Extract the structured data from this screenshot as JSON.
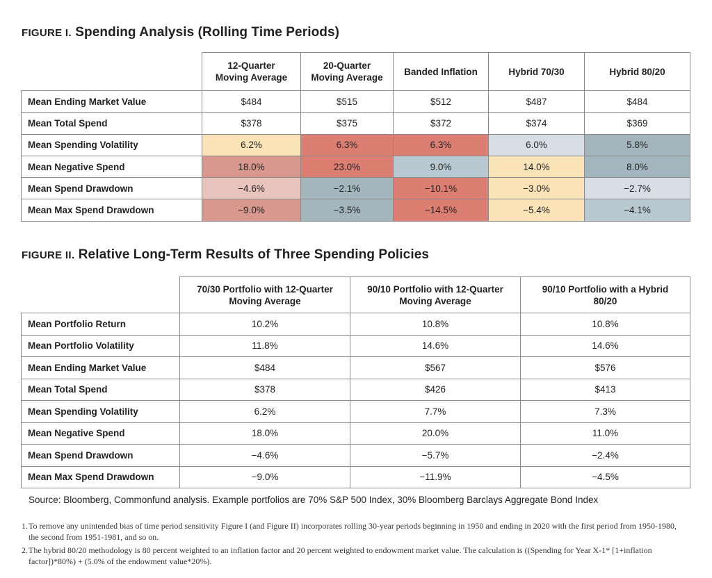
{
  "figure1": {
    "label": "FIGURE I.",
    "title": "Spending Analysis (Rolling Time Periods)",
    "columns": [
      "12-Quarter\nMoving Average",
      "20-Quarter\nMoving Average",
      "Banded Inflation",
      "Hybrid 70/30",
      "Hybrid 80/20"
    ],
    "rows": [
      {
        "label": "Mean Ending Market Value",
        "values": [
          "$484",
          "$515",
          "$512",
          "$487",
          "$484"
        ],
        "colors": [
          "",
          "",
          "",
          "",
          ""
        ]
      },
      {
        "label": "Mean Total Spend",
        "values": [
          "$378",
          "$375",
          "$372",
          "$374",
          "$369"
        ],
        "colors": [
          "",
          "",
          "",
          "",
          ""
        ]
      },
      {
        "label": "Mean Spending Volatility",
        "values": [
          "6.2%",
          "6.3%",
          "6.3%",
          "6.0%",
          "5.8%"
        ],
        "colors": [
          "#fbe3b8",
          "#dd7e73",
          "#dd7e73",
          "#d8dee5",
          "#a3b6be"
        ]
      },
      {
        "label": "Mean Negative Spend",
        "values": [
          "18.0%",
          "23.0%",
          "9.0%",
          "14.0%",
          "8.0%"
        ],
        "colors": [
          "#d9988e",
          "#dd7e73",
          "#b8c9d2",
          "#fbe3b8",
          "#a3b6be"
        ]
      },
      {
        "label": "Mean Spend Drawdown",
        "values": [
          "−4.6%",
          "−2.1%",
          "−10.1%",
          "−3.0%",
          "−2.7%"
        ],
        "colors": [
          "#e9c3bd",
          "#a3b6be",
          "#dd7e73",
          "#fbe3b8",
          "#d8dee5"
        ]
      },
      {
        "label": "Mean Max Spend Drawdown",
        "values": [
          "−9.0%",
          "−3.5%",
          "−14.5%",
          "−5.4%",
          "−4.1%"
        ],
        "colors": [
          "#d9988e",
          "#a3b6be",
          "#dd7e73",
          "#fbe3b8",
          "#b8c9d2"
        ]
      }
    ]
  },
  "figure2": {
    "label": "FIGURE II.",
    "title": "Relative Long-Term Results of Three Spending Policies",
    "columns": [
      "70/30 Portfolio with 12-Quarter\nMoving Average",
      "90/10 Portfolio with 12-Quarter\nMoving Average",
      "90/10 Portfolio with a Hybrid\n80/20"
    ],
    "rows": [
      {
        "label": "Mean Portfolio Return",
        "values": [
          "10.2%",
          "10.8%",
          "10.8%"
        ]
      },
      {
        "label": "Mean Portfolio Volatility",
        "values": [
          "11.8%",
          "14.6%",
          "14.6%"
        ]
      },
      {
        "label": "Mean Ending Market Value",
        "values": [
          "$484",
          "$567",
          "$576"
        ]
      },
      {
        "label": "Mean Total Spend",
        "values": [
          "$378",
          "$426",
          "$413"
        ]
      },
      {
        "label": "Mean Spending Volatility",
        "values": [
          "6.2%",
          "7.7%",
          "7.3%"
        ]
      },
      {
        "label": "Mean Negative Spend",
        "values": [
          "18.0%",
          "20.0%",
          "11.0%"
        ]
      },
      {
        "label": "Mean Spend Drawdown",
        "values": [
          "−4.6%",
          "−5.7%",
          "−2.4%"
        ]
      },
      {
        "label": "Mean Max Spend Drawdown",
        "values": [
          "−9.0%",
          "−11.9%",
          "−4.5%"
        ]
      }
    ]
  },
  "source": "Source: Bloomberg, Commonfund analysis. Example portfolios are 70% S&P 500 Index, 30% Bloomberg Barclays Aggregate Bond Index",
  "footnotes": [
    {
      "num": "1.",
      "text": "To remove any unintended bias of time period sensitivity Figure I (and Figure II) incorporates rolling 30-year periods beginning in 1950 and ending in 2020 with the first period from 1950-1980, the second from 1951-1981, and so on."
    },
    {
      "num": "2.",
      "text": "The hybrid 80/20 methodology is 80 percent weighted to an inflation factor and 20 percent weighted to endowment market value. The calculation is ((Spending for Year X-1* [1+inflation factor])*80%) + (5.0% of the endowment value*20%)."
    }
  ]
}
